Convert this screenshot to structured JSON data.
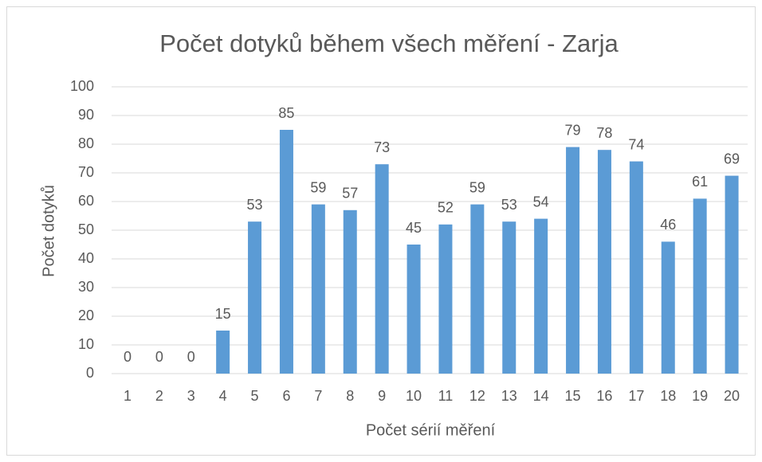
{
  "chart_data": {
    "type": "bar",
    "title": "Počet dotyků během všech měření - Zarja",
    "x_label": "Počet sérií měření",
    "y_label": "Počet dotyků",
    "categories": [
      "1",
      "2",
      "3",
      "4",
      "5",
      "6",
      "7",
      "8",
      "9",
      "10",
      "11",
      "12",
      "13",
      "14",
      "15",
      "16",
      "17",
      "18",
      "19",
      "20"
    ],
    "values": [
      0,
      0,
      0,
      15,
      53,
      85,
      59,
      57,
      73,
      45,
      52,
      59,
      53,
      54,
      79,
      78,
      74,
      46,
      61,
      69
    ],
    "color": "#5b9bd5",
    "ylim": [
      0,
      100
    ],
    "yticks": [
      0,
      10,
      20,
      30,
      40,
      50,
      60,
      70,
      80,
      90,
      100
    ],
    "grid": true,
    "data_labels": true
  }
}
